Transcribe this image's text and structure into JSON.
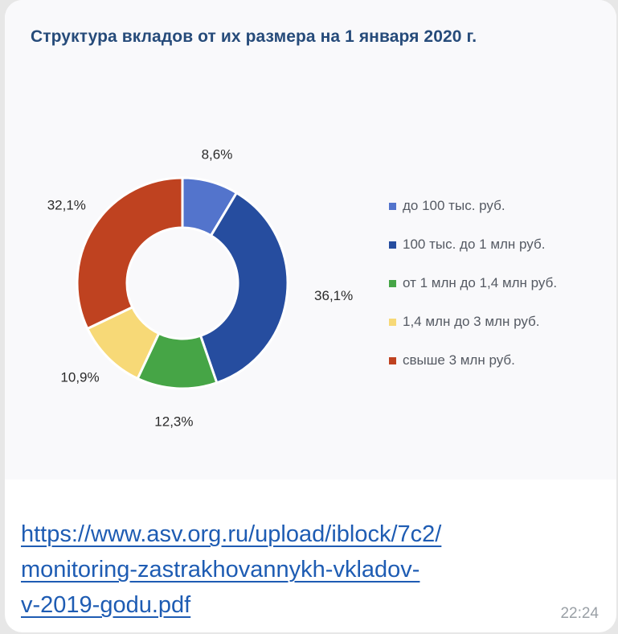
{
  "message": {
    "link_lines": [
      "https://www.asv.org.ru/upload/iblock/7c2/",
      "monitoring-zastrakhovannykh-vkladov-",
      "v-2019-godu.pdf"
    ],
    "time": "22:24"
  },
  "chart_data": {
    "type": "pie",
    "donut": true,
    "title": "Структура вкладов от их размера на 1 января 2020 г.",
    "categories": [
      "до 100 тыс. руб.",
      "100 тыс. до 1 млн руб.",
      "от 1 млн до 1,4 млн руб.",
      "1,4 млн до 3 млн руб.",
      "свыше 3 млн руб."
    ],
    "values": [
      8.6,
      36.1,
      12.3,
      10.9,
      32.1
    ],
    "data_labels": [
      "8,6%",
      "36,1%",
      "12,3%",
      "10,9%",
      "32,1%"
    ],
    "colors": [
      "#5374cc",
      "#264d9f",
      "#46a546",
      "#f7d977",
      "#bf4220"
    ],
    "legend_position": "right"
  }
}
